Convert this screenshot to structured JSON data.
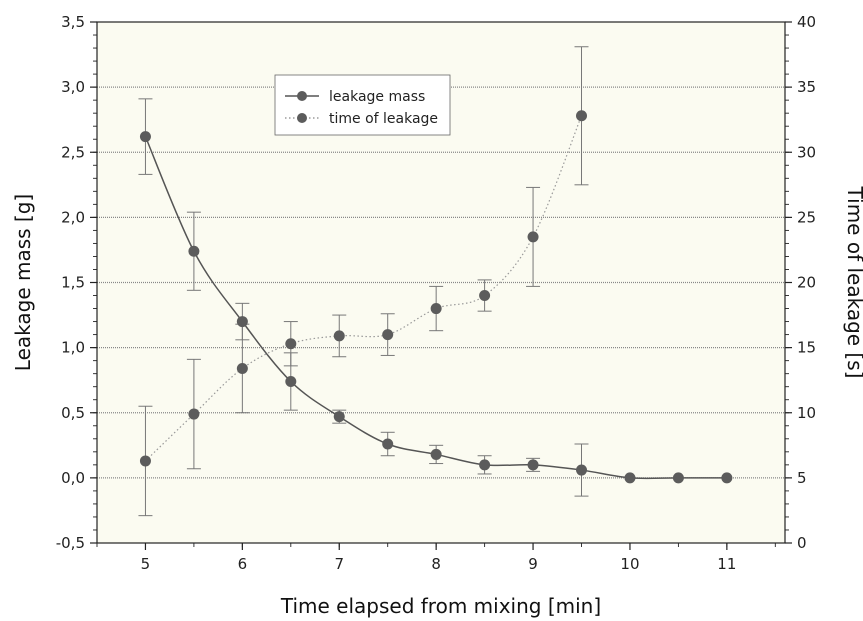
{
  "chart_data": {
    "type": "line",
    "xlabel": "Time elapsed from mixing [min]",
    "ylabel_left": "Leakage mass [g]",
    "ylabel_right": "Time of leakage [s]",
    "xlim": [
      4.5,
      11.6
    ],
    "ylim_left": [
      -0.5,
      3.5
    ],
    "ylim_right": [
      0,
      40
    ],
    "x_ticks": [
      5,
      6,
      7,
      8,
      9,
      10,
      11
    ],
    "x_tick_labels": [
      "5",
      "6",
      "7",
      "8",
      "9",
      "10",
      "11"
    ],
    "y_left_ticks": [
      -0.5,
      0,
      0.5,
      1,
      1.5,
      2,
      2.5,
      3,
      3.5
    ],
    "y_left_tick_labels": [
      "-0,5",
      "0,0",
      "0,5",
      "1,0",
      "1,5",
      "2,0",
      "2,5",
      "3,0",
      "3,5"
    ],
    "y_right_ticks": [
      0,
      5,
      10,
      15,
      20,
      25,
      30,
      35,
      40
    ],
    "y_right_tick_labels": [
      "0",
      "5",
      "10",
      "15",
      "20",
      "25",
      "30",
      "35",
      "40"
    ],
    "horizontal_grid": true,
    "legend_position": "top-center",
    "colors": {
      "plot_background": "#fbfbf1",
      "marker": "#5c5c5c",
      "line": "#555555",
      "grid": "#888888",
      "error_bar": "#777777"
    },
    "series": [
      {
        "name": "leakage mass",
        "axis": "left",
        "line_style": "solid",
        "x": [
          5,
          5.5,
          6,
          6.5,
          7,
          7.5,
          8,
          8.5,
          9,
          9.5,
          10,
          10.5,
          11
        ],
        "y": [
          2.62,
          1.74,
          1.2,
          0.74,
          0.47,
          0.26,
          0.18,
          0.1,
          0.1,
          0.06,
          0.0,
          0.0,
          0.0
        ],
        "error": [
          0.29,
          0.3,
          0.14,
          0.22,
          0.05,
          0.09,
          0.07,
          0.07,
          0.05,
          0.2,
          0,
          0,
          0
        ]
      },
      {
        "name": "time of leakage",
        "axis": "right",
        "line_style": "dotted",
        "x": [
          5,
          5.5,
          6,
          6.5,
          7,
          7.5,
          8,
          8.5,
          9,
          9.5
        ],
        "y": [
          6.3,
          9.9,
          13.4,
          15.3,
          15.9,
          16.0,
          18.0,
          19.0,
          23.5,
          32.8
        ],
        "error": [
          4.2,
          4.2,
          3.4,
          1.7,
          1.6,
          1.6,
          1.7,
          1.2,
          3.8,
          5.3
        ]
      }
    ]
  }
}
